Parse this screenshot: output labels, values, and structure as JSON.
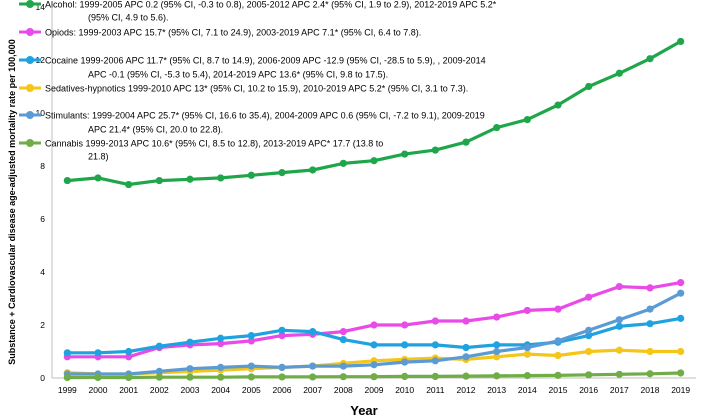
{
  "chart_data": {
    "type": "line",
    "title": "",
    "xlabel": "Year",
    "ylabel": "Substance + Cardiovascular disease age-adjusted mortality rate per 100,000",
    "ylim": [
      0,
      14
    ],
    "yticks": [
      "0",
      "2",
      "4",
      "6",
      "8",
      "10",
      "12",
      "14"
    ],
    "grid": false,
    "categories": [
      "1999",
      "2000",
      "2001",
      "2002",
      "2003",
      "2004",
      "2005",
      "2006",
      "2007",
      "2008",
      "2009",
      "2010",
      "2011",
      "2012",
      "2013",
      "2014",
      "2015",
      "2016",
      "2017",
      "2018",
      "2019"
    ],
    "series": [
      {
        "name": "Alcohol",
        "color": "#1fa64a",
        "legend_lines": [
          "Alcohol: 1999-2005 APC 0.2 (95% CI, -0.3 to 0.8), 2005-2012 APC 2.4* (95% CI, 1.9 to 2.9), 2012-2019 APC 5.2*",
          "(95% CI, 4.9 to 5.6)."
        ],
        "values": [
          7.45,
          7.55,
          7.3,
          7.45,
          7.5,
          7.55,
          7.65,
          7.75,
          7.85,
          8.1,
          8.2,
          8.45,
          8.6,
          8.9,
          9.45,
          9.75,
          10.3,
          11.0,
          11.5,
          12.05,
          12.7
        ]
      },
      {
        "name": "Opiods",
        "color": "#e84be8",
        "legend_lines": [
          "Opiods: 1999-2003 APC 15.7* (95% CI, 7.1 to 24.9), 2003-2019 APC 7.1* (95% CI, 6.4 to 7.8)."
        ],
        "values": [
          0.8,
          0.8,
          0.8,
          1.15,
          1.25,
          1.3,
          1.4,
          1.6,
          1.65,
          1.75,
          2.0,
          2.0,
          2.15,
          2.15,
          2.3,
          2.55,
          2.6,
          3.05,
          3.45,
          3.4,
          3.6
        ]
      },
      {
        "name": "Cocaine",
        "color": "#1fa2e0",
        "legend_lines": [
          "Cocaine 1999-2006 APC 11.7* (95% CI, 8.7 to 14.9), 2006-2009 APC -12.9 (95% CI, -28.5 to 5.9), , 2009-2014",
          "APC -0.1 (95% CI, -5.3 to 5.4), 2014-2019 APC 13.6* (95% CI, 9.8 to 17.5)."
        ],
        "values": [
          0.95,
          0.95,
          1.0,
          1.2,
          1.35,
          1.5,
          1.6,
          1.8,
          1.75,
          1.45,
          1.25,
          1.25,
          1.25,
          1.15,
          1.25,
          1.25,
          1.35,
          1.6,
          1.95,
          2.05,
          2.25
        ]
      },
      {
        "name": "Sedatives-hypnotics",
        "color": "#f5c518",
        "legend_lines": [
          "Sedatives-hypnotics  1999-2010 APC 13* (95% CI, 10.2 to 15.9), 2010-2019 APC 5.2* (95% CI, 3.1 to 7.3)."
        ],
        "values": [
          0.2,
          0.15,
          0.15,
          0.2,
          0.25,
          0.3,
          0.35,
          0.4,
          0.45,
          0.55,
          0.65,
          0.7,
          0.75,
          0.7,
          0.8,
          0.9,
          0.85,
          1.0,
          1.05,
          1.0,
          1.0
        ]
      },
      {
        "name": "Stimulants",
        "color": "#5b9bd5",
        "legend_lines": [
          "Stimulants:  1999-2004 APC 25.7* (95% CI, 16.6 to 35.4), 2004-2009 APC 0.6 (95% CI, -7.2 to 9.1), 2009-2019",
          "APC 21.4* (95% CI, 20.0 to 22.8)."
        ],
        "values": [
          0.15,
          0.15,
          0.15,
          0.25,
          0.35,
          0.4,
          0.45,
          0.4,
          0.45,
          0.45,
          0.5,
          0.6,
          0.65,
          0.8,
          1.0,
          1.15,
          1.4,
          1.8,
          2.2,
          2.6,
          3.2
        ]
      },
      {
        "name": "Cannabis",
        "color": "#70ad47",
        "legend_lines": [
          "Cannabis 1999-2013 APC 10.6* (95% CI, 8.5 to 12.8), 2013-2019 APC* 17.7 (13.8 to",
          "21.8)"
        ],
        "values": [
          0.02,
          0.02,
          0.02,
          0.03,
          0.03,
          0.03,
          0.04,
          0.04,
          0.04,
          0.05,
          0.05,
          0.06,
          0.06,
          0.07,
          0.08,
          0.09,
          0.1,
          0.12,
          0.14,
          0.16,
          0.19
        ]
      }
    ]
  }
}
